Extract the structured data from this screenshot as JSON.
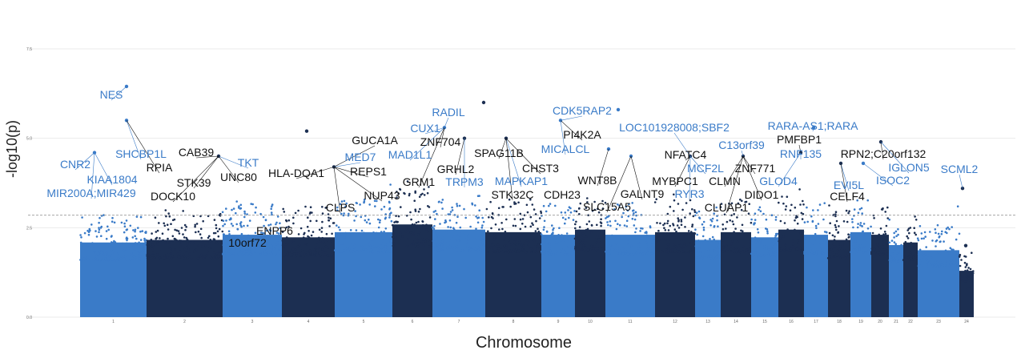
{
  "chart_data": {
    "type": "scatter",
    "title": "",
    "xlabel": "Chromosome",
    "ylabel": "-log10(p)",
    "ylim": [
      0,
      8
    ],
    "y_ticks": [
      "0.0",
      "2.5",
      "5.0",
      "7.5"
    ],
    "threshold": 2.85,
    "grid": true,
    "colors": {
      "light": "#3a7bc8",
      "dark": "#1c2f52",
      "label_blue": "#3a7bc8",
      "label_dark": "#111111",
      "threshold_line": "#999999"
    },
    "chromosomes": [
      {
        "label": "1",
        "start": 100,
        "end": 183,
        "shade": "light",
        "peak": 2.9
      },
      {
        "label": "2",
        "start": 183,
        "end": 278,
        "shade": "dark",
        "peak": 3.0
      },
      {
        "label": "3",
        "start": 278,
        "end": 352,
        "shade": "light",
        "peak": 3.2
      },
      {
        "label": "4",
        "start": 352,
        "end": 418,
        "shade": "dark",
        "peak": 3.1
      },
      {
        "label": "5",
        "start": 418,
        "end": 490,
        "shade": "light",
        "peak": 3.3
      },
      {
        "label": "6",
        "start": 490,
        "end": 540,
        "shade": "dark",
        "peak": 3.6
      },
      {
        "label": "7",
        "start": 540,
        "end": 606,
        "shade": "light",
        "peak": 3.4
      },
      {
        "label": "8",
        "start": 606,
        "end": 676,
        "shade": "dark",
        "peak": 3.3
      },
      {
        "label": "9",
        "start": 676,
        "end": 718,
        "shade": "light",
        "peak": 3.2
      },
      {
        "label": "10",
        "start": 718,
        "end": 756,
        "shade": "dark",
        "peak": 3.4
      },
      {
        "label": "11",
        "start": 756,
        "end": 818,
        "shade": "light",
        "peak": 3.2
      },
      {
        "label": "12",
        "start": 818,
        "end": 868,
        "shade": "dark",
        "peak": 3.3
      },
      {
        "label": "13",
        "start": 868,
        "end": 900,
        "shade": "light",
        "peak": 3.0
      },
      {
        "label": "14",
        "start": 900,
        "end": 938,
        "shade": "dark",
        "peak": 3.3
      },
      {
        "label": "15",
        "start": 938,
        "end": 972,
        "shade": "light",
        "peak": 3.1
      },
      {
        "label": "16",
        "start": 972,
        "end": 1004,
        "shade": "dark",
        "peak": 3.4
      },
      {
        "label": "17",
        "start": 1004,
        "end": 1034,
        "shade": "light",
        "peak": 3.2
      },
      {
        "label": "18",
        "start": 1034,
        "end": 1062,
        "shade": "dark",
        "peak": 3.0
      },
      {
        "label": "19",
        "start": 1062,
        "end": 1088,
        "shade": "light",
        "peak": 3.3
      },
      {
        "label": "20",
        "start": 1088,
        "end": 1110,
        "shade": "dark",
        "peak": 3.2
      },
      {
        "label": "21",
        "start": 1110,
        "end": 1128,
        "shade": "light",
        "peak": 2.8
      },
      {
        "label": "22",
        "start": 1128,
        "end": 1146,
        "shade": "dark",
        "peak": 2.9
      },
      {
        "label": "23",
        "start": 1146,
        "end": 1198,
        "shade": "light",
        "peak": 2.6
      },
      {
        "label": "24",
        "start": 1198,
        "end": 1216,
        "shade": "dark",
        "peak": 1.8
      }
    ],
    "top_points": [
      {
        "x": 158,
        "y": 6.45,
        "shade": "light"
      },
      {
        "x": 158,
        "y": 5.5,
        "shade": "light"
      },
      {
        "x": 604,
        "y": 6.0,
        "shade": "dark"
      },
      {
        "x": 383,
        "y": 5.2,
        "shade": "dark"
      },
      {
        "x": 772,
        "y": 5.8,
        "shade": "light"
      },
      {
        "x": 700,
        "y": 5.5,
        "shade": "light"
      },
      {
        "x": 760,
        "y": 4.7,
        "shade": "light"
      },
      {
        "x": 788,
        "y": 4.5,
        "shade": "light"
      },
      {
        "x": 555,
        "y": 5.3,
        "shade": "light"
      },
      {
        "x": 632,
        "y": 5.0,
        "shade": "dark"
      },
      {
        "x": 580,
        "y": 5.0,
        "shade": "dark"
      },
      {
        "x": 1100,
        "y": 4.9,
        "shade": "dark"
      },
      {
        "x": 1016,
        "y": 5.3,
        "shade": "light"
      },
      {
        "x": 928,
        "y": 4.5,
        "shade": "dark"
      },
      {
        "x": 1000,
        "y": 4.6,
        "shade": "dark"
      },
      {
        "x": 118,
        "y": 4.6,
        "shade": "light"
      },
      {
        "x": 273,
        "y": 4.5,
        "shade": "dark"
      },
      {
        "x": 417,
        "y": 4.2,
        "shade": "dark"
      },
      {
        "x": 1050,
        "y": 4.3,
        "shade": "dark"
      },
      {
        "x": 1078,
        "y": 4.3,
        "shade": "light"
      },
      {
        "x": 862,
        "y": 4.5,
        "shade": "dark"
      },
      {
        "x": 1202,
        "y": 3.6,
        "shade": "dark"
      },
      {
        "x": 1206,
        "y": 2.0,
        "shade": "dark"
      },
      {
        "x": 1210,
        "y": 0.8,
        "shade": "dark"
      }
    ],
    "annotations": [
      {
        "text": "NES",
        "color": "blue",
        "x": 139,
        "y": 118
      },
      {
        "text": "CNR2",
        "color": "blue",
        "x": 94,
        "y": 205
      },
      {
        "text": "KIAA1804",
        "color": "blue",
        "x": 140,
        "y": 224
      },
      {
        "text": "MIR200A;MIR429",
        "color": "blue",
        "x": 114,
        "y": 241
      },
      {
        "text": "SHCBP1L",
        "color": "blue",
        "x": 176,
        "y": 192
      },
      {
        "text": "RPIA",
        "color": "dark",
        "x": 199,
        "y": 209
      },
      {
        "text": "CAB39",
        "color": "dark",
        "x": 245,
        "y": 190
      },
      {
        "text": "STK39",
        "color": "dark",
        "x": 242,
        "y": 228
      },
      {
        "text": "DOCK10",
        "color": "dark",
        "x": 216,
        "y": 245
      },
      {
        "text": "TKT",
        "color": "blue",
        "x": 310,
        "y": 203
      },
      {
        "text": "UNC80",
        "color": "dark",
        "x": 298,
        "y": 221
      },
      {
        "text": "HLA-DQA1",
        "color": "dark",
        "x": 370,
        "y": 216
      },
      {
        "text": "ENPP6",
        "color": "dark",
        "x": 343,
        "y": 288
      },
      {
        "text": "10orf72",
        "color": "dark",
        "x": 309,
        "y": 303
      },
      {
        "text": "GUCA1A",
        "color": "dark",
        "x": 468,
        "y": 175
      },
      {
        "text": "MED7",
        "color": "blue",
        "x": 450,
        "y": 196
      },
      {
        "text": "MAD1L1",
        "color": "blue",
        "x": 512,
        "y": 193
      },
      {
        "text": "REPS1",
        "color": "dark",
        "x": 460,
        "y": 214
      },
      {
        "text": "GRM1",
        "color": "dark",
        "x": 523,
        "y": 227
      },
      {
        "text": "NUP43",
        "color": "dark",
        "x": 477,
        "y": 244
      },
      {
        "text": "CLPS",
        "color": "dark",
        "x": 425,
        "y": 259
      },
      {
        "text": "RADIL",
        "color": "blue",
        "x": 560,
        "y": 140
      },
      {
        "text": "CUX1",
        "color": "blue",
        "x": 531,
        "y": 160
      },
      {
        "text": "ZNF704",
        "color": "dark",
        "x": 550,
        "y": 177
      },
      {
        "text": "SPAG11B",
        "color": "dark",
        "x": 623,
        "y": 191
      },
      {
        "text": "GRHL2",
        "color": "dark",
        "x": 569,
        "y": 211
      },
      {
        "text": "TRPM3",
        "color": "blue",
        "x": 580,
        "y": 227
      },
      {
        "text": "MAPKAP1",
        "color": "blue",
        "x": 651,
        "y": 226
      },
      {
        "text": "CHST3",
        "color": "dark",
        "x": 675,
        "y": 210
      },
      {
        "text": "STK32C",
        "color": "dark",
        "x": 640,
        "y": 243
      },
      {
        "text": "CDH23",
        "color": "dark",
        "x": 702,
        "y": 243
      },
      {
        "text": "CDK5RAP2",
        "color": "blue",
        "x": 727,
        "y": 138
      },
      {
        "text": "LOC101928008;SBF2",
        "color": "blue",
        "x": 842,
        "y": 159
      },
      {
        "text": "PI4K2A",
        "color": "dark",
        "x": 727,
        "y": 168
      },
      {
        "text": "MICALCL",
        "color": "blue",
        "x": 706,
        "y": 186
      },
      {
        "text": "WNT8B",
        "color": "dark",
        "x": 746,
        "y": 225
      },
      {
        "text": "SLC15A5",
        "color": "dark",
        "x": 758,
        "y": 258
      },
      {
        "text": "GALNT9",
        "color": "dark",
        "x": 802,
        "y": 242
      },
      {
        "text": "MYBPC1",
        "color": "dark",
        "x": 843,
        "y": 226
      },
      {
        "text": "NFATC4",
        "color": "dark",
        "x": 856,
        "y": 193
      },
      {
        "text": "MCF2L",
        "color": "blue",
        "x": 881,
        "y": 210
      },
      {
        "text": "RYR3",
        "color": "blue",
        "x": 861,
        "y": 242
      },
      {
        "text": "CLMN",
        "color": "dark",
        "x": 905,
        "y": 226
      },
      {
        "text": "CLUAP1",
        "color": "dark",
        "x": 907,
        "y": 259
      },
      {
        "text": "C13orf39",
        "color": "blue",
        "x": 926,
        "y": 181
      },
      {
        "text": "ZNF771",
        "color": "dark",
        "x": 943,
        "y": 210
      },
      {
        "text": "GLOD4",
        "color": "blue",
        "x": 972,
        "y": 226
      },
      {
        "text": "DIDO1",
        "color": "dark",
        "x": 951,
        "y": 243
      },
      {
        "text": "RARA-AS1;RARA",
        "color": "blue",
        "x": 1015,
        "y": 157
      },
      {
        "text": "PMFBP1",
        "color": "dark",
        "x": 998,
        "y": 174
      },
      {
        "text": "RNF135",
        "color": "blue",
        "x": 1000,
        "y": 192
      },
      {
        "text": "RPN2;C20orf132",
        "color": "dark",
        "x": 1103,
        "y": 192
      },
      {
        "text": "IGLON5",
        "color": "blue",
        "x": 1135,
        "y": 209
      },
      {
        "text": "SCML2",
        "color": "blue",
        "x": 1198,
        "y": 211
      },
      {
        "text": "ISOC2",
        "color": "blue",
        "x": 1115,
        "y": 225
      },
      {
        "text": "EVI5L",
        "color": "blue",
        "x": 1060,
        "y": 231
      },
      {
        "text": "CELF4",
        "color": "dark",
        "x": 1058,
        "y": 245
      }
    ]
  }
}
